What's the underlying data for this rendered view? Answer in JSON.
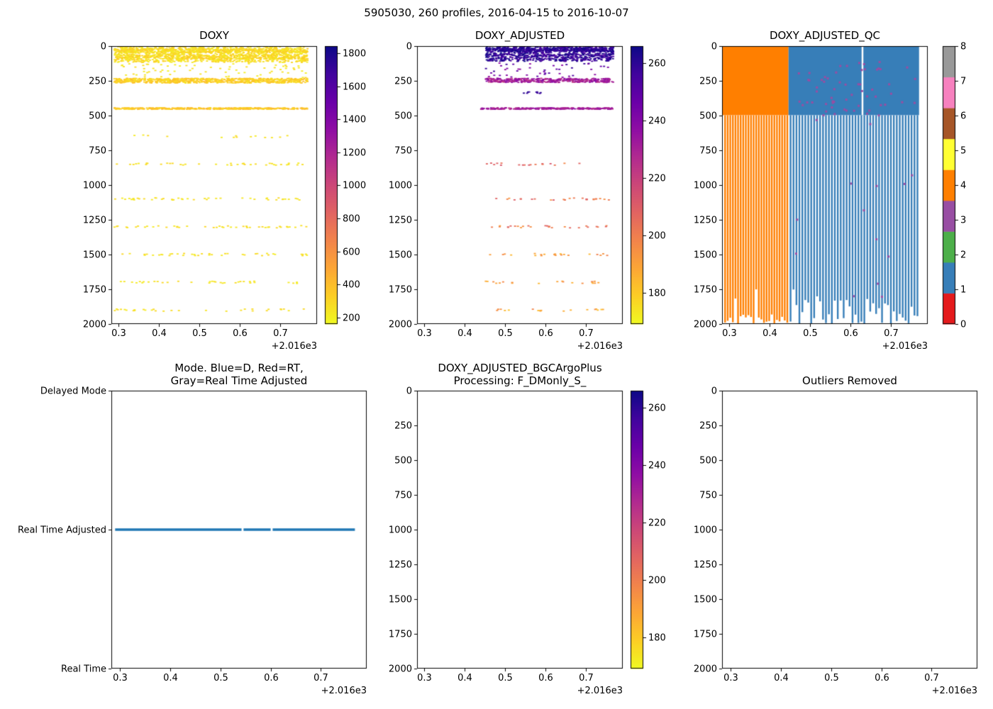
{
  "figure": {
    "suptitle": "5905030, 260 profiles, 2016-04-15 to 2016-10-07",
    "background": "#ffffff",
    "colormaps": {
      "plasma": [
        [
          0,
          "#0d0887"
        ],
        [
          0.1,
          "#41049d"
        ],
        [
          0.2,
          "#6a00a8"
        ],
        [
          0.3,
          "#8f0da4"
        ],
        [
          0.4,
          "#b12a90"
        ],
        [
          0.5,
          "#cc4778"
        ],
        [
          0.6,
          "#e16462"
        ],
        [
          0.7,
          "#f2844b"
        ],
        [
          0.8,
          "#fca636"
        ],
        [
          0.9,
          "#fcce25"
        ],
        [
          1,
          "#f0f921"
        ]
      ],
      "set1": [
        "#e41a1c",
        "#377eb8",
        "#4daf4a",
        "#984ea3",
        "#ff7f00",
        "#ffff33",
        "#a65628",
        "#f781bf",
        "#999999"
      ]
    }
  },
  "chart_data": [
    {
      "id": "doxy",
      "type": "scatter",
      "title": "DOXY",
      "xlim": [
        0.2825,
        0.7915
      ],
      "ylim": [
        2000,
        0
      ],
      "xticks": [
        "0.3",
        "0.4",
        "0.5",
        "0.6",
        "0.7"
      ],
      "yticks": [
        "0",
        "250",
        "500",
        "750",
        "1000",
        "1250",
        "1500",
        "1750",
        "2000"
      ],
      "x_offset": "+2.016e3",
      "colorbar": {
        "kind": "continuous",
        "cmap": "plasma_r",
        "vmin": 161,
        "vmax": 1843,
        "ticks": [
          "200",
          "400",
          "600",
          "800",
          "1000",
          "1200",
          "1400",
          "1600",
          "1800"
        ]
      },
      "seed": 11,
      "bands": [
        {
          "y0": 2,
          "y1": 118,
          "x0": 0.29,
          "x1": 0.768,
          "n": 1000,
          "v0": 200,
          "v1": 330
        },
        {
          "y0": 18,
          "y1": 46,
          "x0": 0.29,
          "x1": 0.768,
          "n": 420,
          "v0": 210,
          "v1": 360
        },
        {
          "y0": 62,
          "y1": 94,
          "x0": 0.29,
          "x1": 0.768,
          "n": 320,
          "v0": 210,
          "v1": 360
        },
        {
          "y0": 125,
          "y1": 228,
          "x0": 0.29,
          "x1": 0.768,
          "n": 70,
          "v0": 195,
          "v1": 280
        },
        {
          "y0": 232,
          "y1": 266,
          "x0": 0.29,
          "x1": 0.768,
          "n": 700,
          "v0": 240,
          "v1": 430
        },
        {
          "y0": 444,
          "y1": 455,
          "x0": 0.29,
          "x1": 0.768,
          "n": 400,
          "v0": 270,
          "v1": 440
        },
        {
          "y0": 640,
          "y1": 660,
          "x0": 0.3,
          "x1": 0.73,
          "n": 14,
          "v0": 210,
          "v1": 300
        },
        {
          "y0": 842,
          "y1": 858,
          "x0": 0.29,
          "x1": 0.768,
          "n": 38,
          "v0": 210,
          "v1": 300
        },
        {
          "y0": 1092,
          "y1": 1108,
          "x0": 0.29,
          "x1": 0.768,
          "n": 44,
          "v0": 210,
          "v1": 300
        },
        {
          "y0": 1292,
          "y1": 1308,
          "x0": 0.29,
          "x1": 0.768,
          "n": 44,
          "v0": 210,
          "v1": 300
        },
        {
          "y0": 1492,
          "y1": 1508,
          "x0": 0.29,
          "x1": 0.768,
          "n": 40,
          "v0": 210,
          "v1": 300
        },
        {
          "y0": 1692,
          "y1": 1708,
          "x0": 0.29,
          "x1": 0.768,
          "n": 34,
          "v0": 210,
          "v1": 300
        },
        {
          "y0": 1892,
          "y1": 1908,
          "x0": 0.29,
          "x1": 0.768,
          "n": 30,
          "v0": 210,
          "v1": 300
        }
      ]
    },
    {
      "id": "doxy_adjusted",
      "type": "scatter",
      "title": "DOXY_ADJUSTED",
      "xlim": [
        0.2825,
        0.7915
      ],
      "ylim": [
        2000,
        0
      ],
      "xticks": [
        "0.3",
        "0.4",
        "0.5",
        "0.6",
        "0.7"
      ],
      "yticks": [
        "0",
        "250",
        "500",
        "750",
        "1000",
        "1250",
        "1500",
        "1750",
        "2000"
      ],
      "x_offset": "+2.016e3",
      "colorbar": {
        "kind": "continuous",
        "cmap": "plasma_r",
        "vmin": 169,
        "vmax": 266,
        "ticks": [
          "180",
          "200",
          "220",
          "240",
          "260"
        ]
      },
      "seed": 22,
      "bands": [
        {
          "y0": 2,
          "y1": 110,
          "x0": 0.452,
          "x1": 0.768,
          "n": 800,
          "v0": 252,
          "v1": 266
        },
        {
          "y0": 16,
          "y1": 40,
          "x0": 0.452,
          "x1": 0.768,
          "n": 300,
          "v0": 255,
          "v1": 266
        },
        {
          "y0": 120,
          "y1": 225,
          "x0": 0.452,
          "x1": 0.768,
          "n": 45,
          "v0": 235,
          "v1": 258
        },
        {
          "y0": 232,
          "y1": 262,
          "x0": 0.452,
          "x1": 0.768,
          "n": 380,
          "v0": 222,
          "v1": 240
        },
        {
          "y0": 320,
          "y1": 345,
          "x0": 0.545,
          "x1": 0.59,
          "n": 9,
          "v0": 252,
          "v1": 262
        },
        {
          "y0": 444,
          "y1": 455,
          "x0": 0.44,
          "x1": 0.768,
          "n": 260,
          "v0": 224,
          "v1": 238
        },
        {
          "y0": 842,
          "y1": 858,
          "x0": 0.452,
          "x1": 0.74,
          "n": 18,
          "v0": 196,
          "v1": 214
        },
        {
          "y0": 1092,
          "y1": 1108,
          "x0": 0.452,
          "x1": 0.768,
          "n": 26,
          "v0": 192,
          "v1": 212
        },
        {
          "y0": 1292,
          "y1": 1308,
          "x0": 0.452,
          "x1": 0.768,
          "n": 26,
          "v0": 190,
          "v1": 210
        },
        {
          "y0": 1492,
          "y1": 1508,
          "x0": 0.452,
          "x1": 0.768,
          "n": 22,
          "v0": 182,
          "v1": 200
        },
        {
          "y0": 1692,
          "y1": 1708,
          "x0": 0.452,
          "x1": 0.768,
          "n": 20,
          "v0": 182,
          "v1": 200
        },
        {
          "y0": 1892,
          "y1": 1908,
          "x0": 0.452,
          "x1": 0.768,
          "n": 18,
          "v0": 180,
          "v1": 198
        }
      ]
    },
    {
      "id": "doxy_adjusted_qc",
      "type": "qc",
      "title": "DOXY_ADJUSTED_QC",
      "xlim": [
        0.2825,
        0.7915
      ],
      "ylim": [
        2000,
        0
      ],
      "xticks": [
        "0.3",
        "0.4",
        "0.5",
        "0.6",
        "0.7"
      ],
      "yticks": [
        "0",
        "250",
        "500",
        "750",
        "1000",
        "1250",
        "1500",
        "1750",
        "2000"
      ],
      "x_offset": "+2.016e3",
      "colorbar": {
        "kind": "discrete",
        "ticks": [
          "0",
          "1",
          "2",
          "3",
          "4",
          "5",
          "6",
          "7",
          "8"
        ]
      },
      "seed": 33,
      "solid": [
        {
          "x0": 0.284,
          "x1": 0.447,
          "y0": 0,
          "y1": 497,
          "qc": 4
        },
        {
          "x0": 0.447,
          "x1": 0.77,
          "y0": 0,
          "y1": 497,
          "qc": 1
        }
      ],
      "gaps": [
        {
          "x": 0.63,
          "y0": 0,
          "y1": 497
        }
      ],
      "stripes": [
        {
          "x0": 0.29,
          "x1": 0.444,
          "n": 25,
          "qc": 4,
          "ytop": 497,
          "ybot_min": 1930,
          "ybot_max": 2000
        },
        {
          "x0": 0.452,
          "x1": 0.766,
          "n": 44,
          "qc": 1,
          "ytop": 497,
          "ybot_min": 1820,
          "ybot_max": 2000
        }
      ],
      "speckles": [
        {
          "x0": 0.46,
          "x1": 0.768,
          "y0": 90,
          "y1": 500,
          "n": 60,
          "qc": 3
        },
        {
          "x0": 0.46,
          "x1": 0.768,
          "y0": 500,
          "y1": 1950,
          "n": 14,
          "qc": 3
        }
      ]
    },
    {
      "id": "mode",
      "type": "catline",
      "title": "Mode. Blue=D, Red=RT,\nGray=Real Time Adjusted",
      "xlim": [
        0.2825,
        0.7915
      ],
      "xticks": [
        "0.3",
        "0.4",
        "0.5",
        "0.6",
        "0.7"
      ],
      "x_offset": "+2.016e3",
      "ycats": [
        "Delayed Mode",
        "Real Time Adjusted",
        "Real Time"
      ],
      "line": {
        "cat": 1,
        "color": "#1f77b4",
        "width": 3.5,
        "segments": [
          [
            0.29,
            0.542
          ],
          [
            0.546,
            0.6
          ],
          [
            0.604,
            0.768
          ]
        ]
      }
    },
    {
      "id": "doxy_adjusted_bgcargoplus",
      "type": "empty",
      "title": "DOXY_ADJUSTED_BGCArgoPlus\nProcessing: F_DMonly_S_",
      "xlim": [
        0.2825,
        0.7915
      ],
      "ylim": [
        2000,
        0
      ],
      "xticks": [
        "0.3",
        "0.4",
        "0.5",
        "0.6",
        "0.7"
      ],
      "yticks": [
        "0",
        "250",
        "500",
        "750",
        "1000",
        "1250",
        "1500",
        "1750",
        "2000"
      ],
      "x_offset": "+2.016e3",
      "colorbar": {
        "kind": "continuous",
        "cmap": "plasma_r",
        "vmin": 169,
        "vmax": 266,
        "ticks": [
          "180",
          "200",
          "220",
          "240",
          "260"
        ]
      }
    },
    {
      "id": "outliers_removed",
      "type": "empty",
      "title": "Outliers Removed",
      "xlim": [
        0.2825,
        0.7915
      ],
      "ylim": [
        2000,
        0
      ],
      "xticks": [
        "0.3",
        "0.4",
        "0.5",
        "0.6",
        "0.7"
      ],
      "yticks": [
        "0",
        "250",
        "500",
        "750",
        "1000",
        "1250",
        "1500",
        "1750",
        "2000"
      ],
      "x_offset": "+2.016e3"
    }
  ]
}
